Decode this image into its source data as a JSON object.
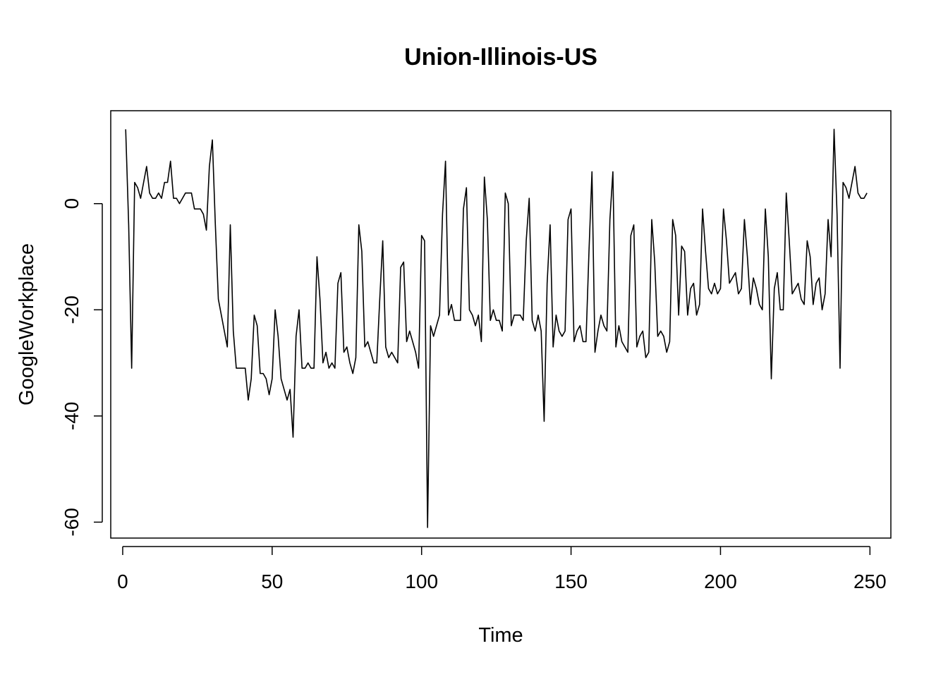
{
  "chart_data": {
    "type": "line",
    "title": "Union-Illinois-US",
    "xlabel": "Time",
    "ylabel": "GoogleWorkplace",
    "xlim": [
      -4,
      257
    ],
    "ylim": [
      -63,
      17.5
    ],
    "x_ticks": [
      0,
      50,
      100,
      150,
      200,
      250
    ],
    "y_ticks": [
      -60,
      -40,
      -20,
      0
    ],
    "grid": false,
    "legend": "none",
    "line_color": "#000000",
    "x_start": 1,
    "values": [
      14,
      -4,
      -31,
      4,
      3,
      1,
      4,
      7,
      2,
      1,
      1,
      2,
      1,
      4,
      4,
      8,
      1,
      1,
      0,
      1,
      2,
      2,
      2,
      -1,
      -1,
      -1,
      -2,
      -5,
      7,
      12,
      -4,
      -18,
      -21,
      -24,
      -27,
      -4,
      -24,
      -31,
      -31,
      -31,
      -31,
      -37,
      -33,
      -21,
      -23,
      -32,
      -32,
      -33,
      -36,
      -33,
      -20,
      -25,
      -33,
      -35,
      -37,
      -35,
      -44,
      -25,
      -20,
      -31,
      -31,
      -30,
      -31,
      -31,
      -10,
      -18,
      -30,
      -28,
      -31,
      -30,
      -31,
      -15,
      -13,
      -28,
      -27,
      -30,
      -32,
      -29,
      -4,
      -9,
      -27,
      -26,
      -28,
      -30,
      -30,
      -18,
      -7,
      -27,
      -29,
      -28,
      -29,
      -30,
      -12,
      -11,
      -26,
      -24,
      -26,
      -28,
      -31,
      -6,
      -7,
      -61,
      -23,
      -25,
      -23,
      -21,
      -2,
      8,
      -21,
      -19,
      -22,
      -22,
      -22,
      -1,
      3,
      -20,
      -21,
      -23,
      -21,
      -26,
      5,
      -3,
      -22,
      -20,
      -22,
      -22,
      -24,
      2,
      0,
      -23,
      -21,
      -21,
      -21,
      -22,
      -7,
      1,
      -22,
      -24,
      -21,
      -24,
      -41,
      -15,
      -4,
      -27,
      -21,
      -24,
      -25,
      -24,
      -3,
      -1,
      -26,
      -24,
      -23,
      -26,
      -26,
      -9,
      6,
      -28,
      -24,
      -21,
      -23,
      -24,
      -3,
      6,
      -27,
      -23,
      -26,
      -27,
      -28,
      -6,
      -4,
      -27,
      -25,
      -24,
      -29,
      -28,
      -3,
      -11,
      -25,
      -24,
      -25,
      -28,
      -26,
      -3,
      -6,
      -21,
      -8,
      -9,
      -21,
      -16,
      -15,
      -21,
      -19,
      -1,
      -9,
      -16,
      -17,
      -15,
      -17,
      -16,
      -1,
      -7,
      -15,
      -14,
      -13,
      -17,
      -16,
      -3,
      -10,
      -19,
      -14,
      -16,
      -19,
      -20,
      -1,
      -10,
      -33,
      -16,
      -13,
      -20,
      -20,
      2,
      -7,
      -17,
      -16,
      -15,
      -18,
      -19,
      -7,
      -10,
      -19,
      -15,
      -14,
      -20,
      -17,
      -3,
      -10,
      14,
      -2,
      -31,
      4,
      3,
      1,
      4,
      7,
      2,
      1,
      1,
      2
    ]
  }
}
